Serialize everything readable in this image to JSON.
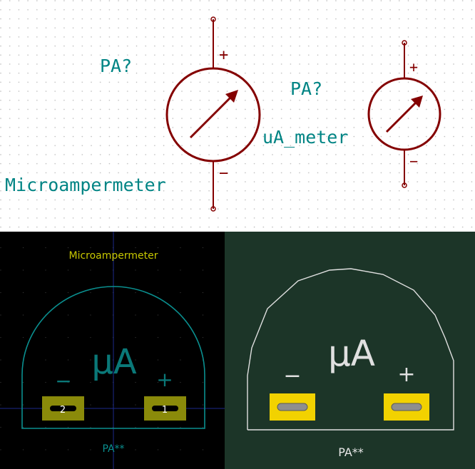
{
  "schematic": {
    "left_symbol": {
      "reference": "PA?",
      "value": "Microampermeter",
      "plus": "+",
      "minus": "−"
    },
    "right_symbol": {
      "reference": "PA?",
      "value": "uA_meter",
      "plus": "+",
      "minus": "−"
    },
    "colors": {
      "background": "#ffffff",
      "symbol": "#840000",
      "text": "#008484",
      "grid_dot": "#b4b4b4"
    }
  },
  "pcb_editor": {
    "value_text": "Microampermeter",
    "reference_text": "PA**",
    "body_text": "µA",
    "minus": "−",
    "plus": "+",
    "pads": [
      {
        "number": "2"
      },
      {
        "number": "1"
      }
    ],
    "colors": {
      "background": "#000000",
      "outline": "#0a8f8f",
      "value_text": "#c8c800",
      "pad": "#8a8a0a"
    }
  },
  "pcb_3d": {
    "reference_text": "PA**",
    "body_text": "µA",
    "minus": "−",
    "plus": "+",
    "colors": {
      "background": "#1c3528",
      "outline": "#e0e0e0",
      "pad": "#f2d200"
    }
  }
}
